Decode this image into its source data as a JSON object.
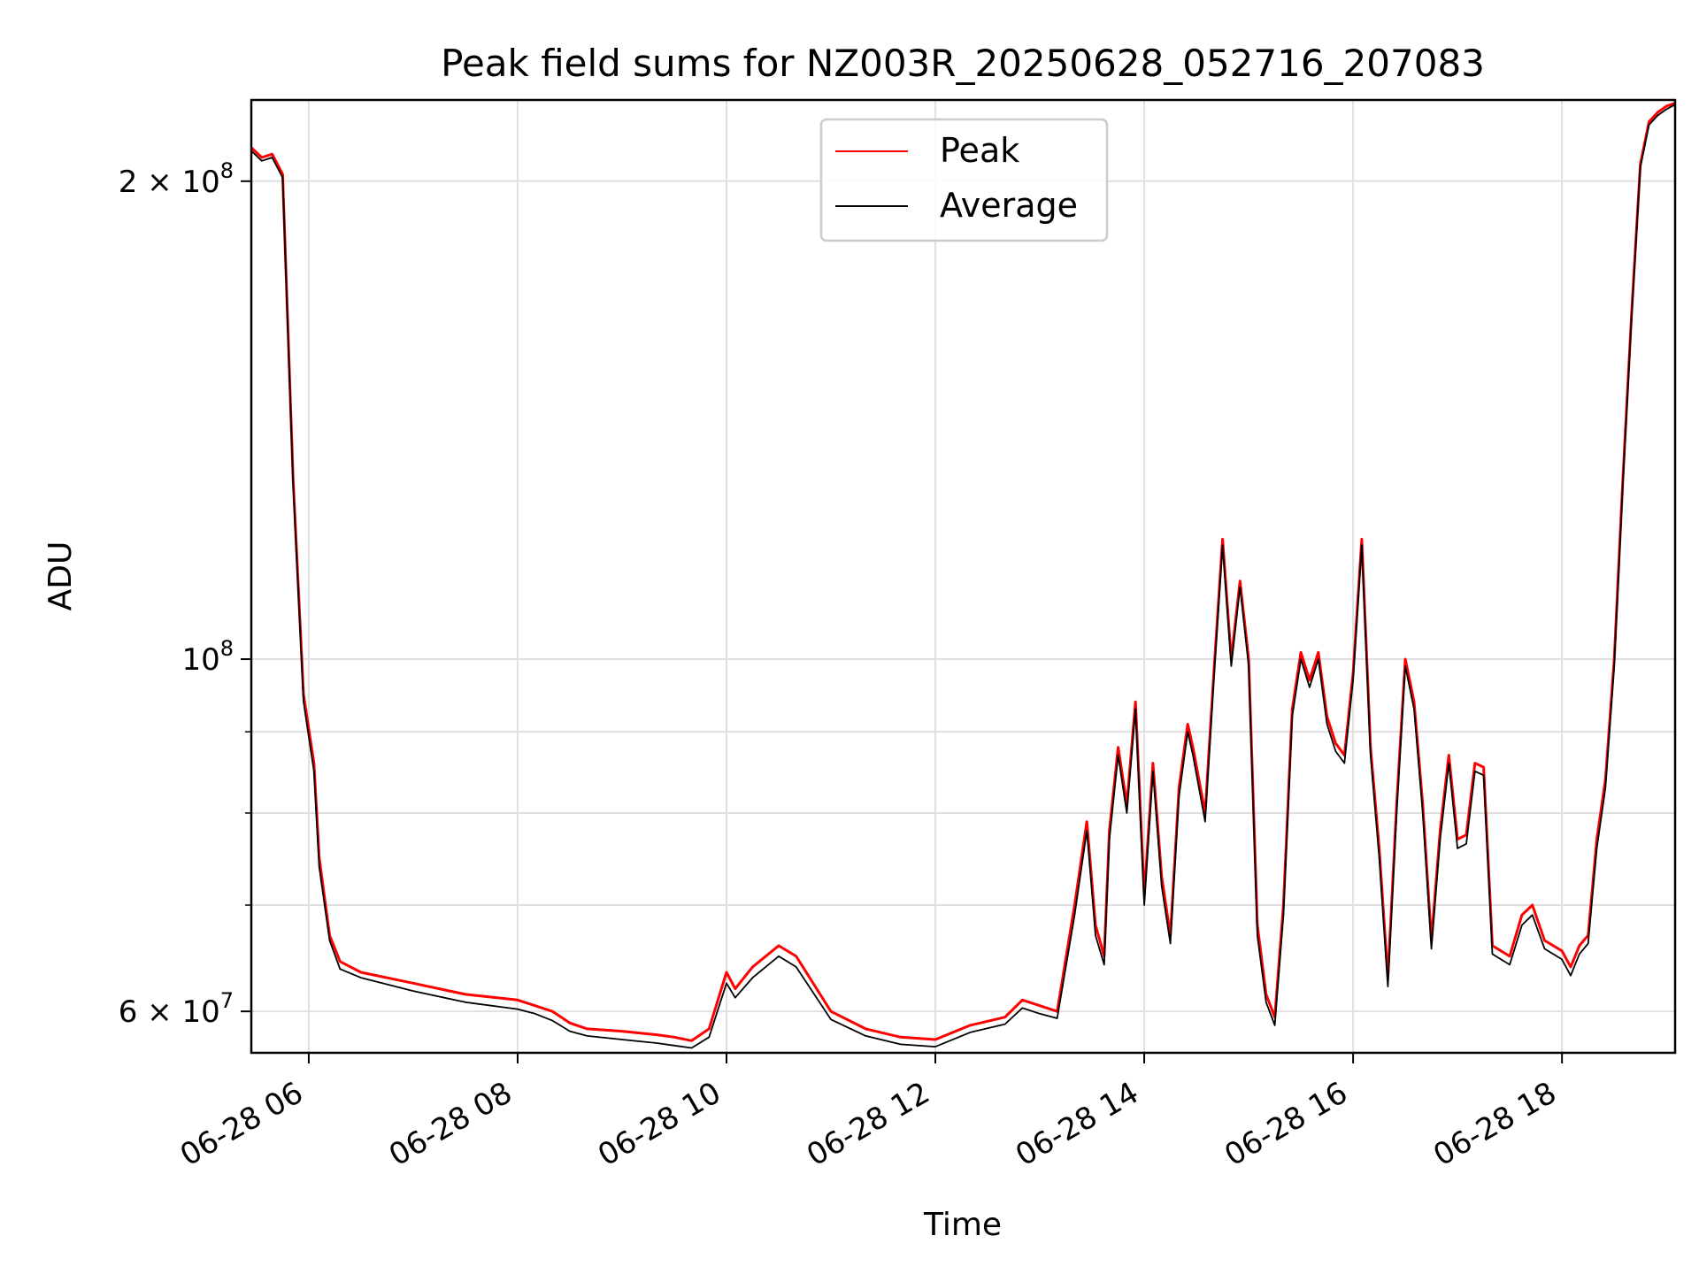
{
  "chart_data": {
    "type": "line",
    "title": "Peak field sums for NZ003R_20250628_052716_207083",
    "xlabel": "Time",
    "ylabel": "ADU",
    "xlim": [
      "06-28 05:27",
      "06-28 19:05"
    ],
    "ylim": [
      56500000,
      225000000
    ],
    "yscale": "log",
    "grid": true,
    "legend_position": "top-center",
    "x_ticks": [
      "06-28 06",
      "06-28 08",
      "06-28 10",
      "06-28 12",
      "06-28 14",
      "06-28 16",
      "06-28 18"
    ],
    "y_major_ticks": [
      {
        "value": 60000000,
        "mantissa": "6",
        "exponent": "7",
        "times": "×"
      },
      {
        "value": 100000000,
        "mantissa": "10",
        "exponent": "8",
        "times": ""
      },
      {
        "value": 200000000,
        "mantissa": "2",
        "exponent": "8",
        "times": "×"
      }
    ],
    "y_minor_ticks": [
      70000000,
      80000000,
      90000000
    ],
    "series": [
      {
        "name": "Peak",
        "color": "#ff0000",
        "x": [
          "06-28 05:27",
          "06-28 05:33",
          "06-28 05:39",
          "06-28 05:45",
          "06-28 05:51",
          "06-28 05:57",
          "06-28 06:03",
          "06-28 06:06",
          "06-28 06:12",
          "06-28 06:18",
          "06-28 06:30",
          "06-28 07:00",
          "06-28 07:30",
          "06-28 08:00",
          "06-28 08:10",
          "06-28 08:20",
          "06-28 08:30",
          "06-28 08:40",
          "06-28 09:00",
          "06-28 09:20",
          "06-28 09:30",
          "06-28 09:40",
          "06-28 09:50",
          "06-28 10:00",
          "06-28 10:05",
          "06-28 10:15",
          "06-28 10:30",
          "06-28 10:40",
          "06-28 11:00",
          "06-28 11:20",
          "06-28 11:40",
          "06-28 12:00",
          "06-28 12:20",
          "06-28 12:40",
          "06-28 12:50",
          "06-28 13:00",
          "06-28 13:10",
          "06-28 13:20",
          "06-28 13:27",
          "06-28 13:32",
          "06-28 13:37",
          "06-28 13:40",
          "06-28 13:45",
          "06-28 13:50",
          "06-28 13:55",
          "06-28 14:00",
          "06-28 14:05",
          "06-28 14:10",
          "06-28 14:15",
          "06-28 14:20",
          "06-28 14:25",
          "06-28 14:28",
          "06-28 14:35",
          "06-28 14:40",
          "06-28 14:45",
          "06-28 14:50",
          "06-28 14:55",
          "06-28 15:00",
          "06-28 15:05",
          "06-28 15:10",
          "06-28 15:15",
          "06-28 15:20",
          "06-28 15:25",
          "06-28 15:30",
          "06-28 15:35",
          "06-28 15:40",
          "06-28 15:45",
          "06-28 15:50",
          "06-28 15:55",
          "06-28 16:00",
          "06-28 16:05",
          "06-28 16:10",
          "06-28 16:15",
          "06-28 16:20",
          "06-28 16:25",
          "06-28 16:30",
          "06-28 16:35",
          "06-28 16:40",
          "06-28 16:45",
          "06-28 16:50",
          "06-28 16:55",
          "06-28 17:00",
          "06-28 17:05",
          "06-28 17:10",
          "06-28 17:15",
          "06-28 17:20",
          "06-28 17:30",
          "06-28 17:37",
          "06-28 17:43",
          "06-28 17:50",
          "06-28 18:00",
          "06-28 18:05",
          "06-28 18:10",
          "06-28 18:15",
          "06-28 18:20",
          "06-28 18:25",
          "06-28 18:30",
          "06-28 18:35",
          "06-28 18:40",
          "06-28 18:45",
          "06-28 18:50",
          "06-28 18:55",
          "06-28 19:00",
          "06-28 19:05"
        ],
        "y": [
          210000000,
          207000000,
          208000000,
          202000000,
          130000000,
          95000000,
          86000000,
          75000000,
          67000000,
          64500000,
          63500000,
          62500000,
          61500000,
          61000000,
          60500000,
          60000000,
          59000000,
          58500000,
          58300000,
          58000000,
          57800000,
          57500000,
          58500000,
          63500000,
          62000000,
          64000000,
          66000000,
          65000000,
          60000000,
          58500000,
          57800000,
          57600000,
          58800000,
          59500000,
          61000000,
          60500000,
          60000000,
          70000000,
          79000000,
          68000000,
          65000000,
          78000000,
          88000000,
          81000000,
          94000000,
          71000000,
          86000000,
          73000000,
          67000000,
          83000000,
          91000000,
          88000000,
          80000000,
          98000000,
          119000000,
          100000000,
          112000000,
          100000000,
          68000000,
          61500000,
          59500000,
          70000000,
          93000000,
          101000000,
          97000000,
          101000000,
          92000000,
          88500000,
          87000000,
          98000000,
          119000000,
          88000000,
          76000000,
          63000000,
          81000000,
          100000000,
          94000000,
          81000000,
          66500000,
          78000000,
          87000000,
          77000000,
          77500000,
          86000000,
          85500000,
          66000000,
          65000000,
          69000000,
          70000000,
          66500000,
          65500000,
          64000000,
          66000000,
          67000000,
          77000000,
          84000000,
          100000000,
          130000000,
          165000000,
          205000000,
          218000000,
          221000000,
          223000000,
          224000000
        ]
      },
      {
        "name": "Average",
        "color": "#000000",
        "x": [
          "06-28 05:27",
          "06-28 05:33",
          "06-28 05:39",
          "06-28 05:45",
          "06-28 05:51",
          "06-28 05:57",
          "06-28 06:03",
          "06-28 06:06",
          "06-28 06:12",
          "06-28 06:18",
          "06-28 06:30",
          "06-28 07:00",
          "06-28 07:30",
          "06-28 08:00",
          "06-28 08:10",
          "06-28 08:20",
          "06-28 08:30",
          "06-28 08:40",
          "06-28 09:00",
          "06-28 09:20",
          "06-28 09:30",
          "06-28 09:40",
          "06-28 09:50",
          "06-28 10:00",
          "06-28 10:05",
          "06-28 10:15",
          "06-28 10:30",
          "06-28 10:40",
          "06-28 11:00",
          "06-28 11:20",
          "06-28 11:40",
          "06-28 12:00",
          "06-28 12:20",
          "06-28 12:40",
          "06-28 12:50",
          "06-28 13:00",
          "06-28 13:10",
          "06-28 13:20",
          "06-28 13:27",
          "06-28 13:32",
          "06-28 13:37",
          "06-28 13:40",
          "06-28 13:45",
          "06-28 13:50",
          "06-28 13:55",
          "06-28 14:00",
          "06-28 14:05",
          "06-28 14:10",
          "06-28 14:15",
          "06-28 14:20",
          "06-28 14:25",
          "06-28 14:28",
          "06-28 14:35",
          "06-28 14:40",
          "06-28 14:45",
          "06-28 14:50",
          "06-28 14:55",
          "06-28 15:00",
          "06-28 15:05",
          "06-28 15:10",
          "06-28 15:15",
          "06-28 15:20",
          "06-28 15:25",
          "06-28 15:30",
          "06-28 15:35",
          "06-28 15:40",
          "06-28 15:45",
          "06-28 15:50",
          "06-28 15:55",
          "06-28 16:00",
          "06-28 16:05",
          "06-28 16:10",
          "06-28 16:15",
          "06-28 16:20",
          "06-28 16:25",
          "06-28 16:30",
          "06-28 16:35",
          "06-28 16:40",
          "06-28 16:45",
          "06-28 16:50",
          "06-28 16:55",
          "06-28 17:00",
          "06-28 17:05",
          "06-28 17:10",
          "06-28 17:15",
          "06-28 17:20",
          "06-28 17:30",
          "06-28 17:37",
          "06-28 17:43",
          "06-28 17:50",
          "06-28 18:00",
          "06-28 18:05",
          "06-28 18:10",
          "06-28 18:15",
          "06-28 18:20",
          "06-28 18:25",
          "06-28 18:30",
          "06-28 18:35",
          "06-28 18:40",
          "06-28 18:45",
          "06-28 18:50",
          "06-28 18:55",
          "06-28 19:00",
          "06-28 19:05"
        ],
        "y": [
          209000000,
          206000000,
          207000000,
          201000000,
          129000000,
          94000000,
          85000000,
          74000000,
          66500000,
          63800000,
          63000000,
          61800000,
          60800000,
          60200000,
          59800000,
          59200000,
          58300000,
          57900000,
          57600000,
          57300000,
          57100000,
          56900000,
          57800000,
          62500000,
          61200000,
          63000000,
          65000000,
          64000000,
          59300000,
          57900000,
          57200000,
          57000000,
          58200000,
          58900000,
          60300000,
          59800000,
          59400000,
          69000000,
          78000000,
          67000000,
          64200000,
          77000000,
          87000000,
          80000000,
          93000000,
          70000000,
          85000000,
          72000000,
          66200000,
          82000000,
          90000000,
          87000000,
          79000000,
          97000000,
          118000000,
          99000000,
          111000000,
          99000000,
          67000000,
          60800000,
          58800000,
          69000000,
          92000000,
          100000000,
          96000000,
          100000000,
          91000000,
          87500000,
          86000000,
          97000000,
          118000000,
          87000000,
          75000000,
          62200000,
          80000000,
          99000000,
          93000000,
          80000000,
          65700000,
          77000000,
          86000000,
          76000000,
          76500000,
          85000000,
          84500000,
          65200000,
          64200000,
          68000000,
          69000000,
          65700000,
          64700000,
          63200000,
          65200000,
          66200000,
          76000000,
          83000000,
          99000000,
          129000000,
          164000000,
          204000000,
          217000000,
          220000000,
          222000000,
          223500000
        ]
      }
    ]
  }
}
